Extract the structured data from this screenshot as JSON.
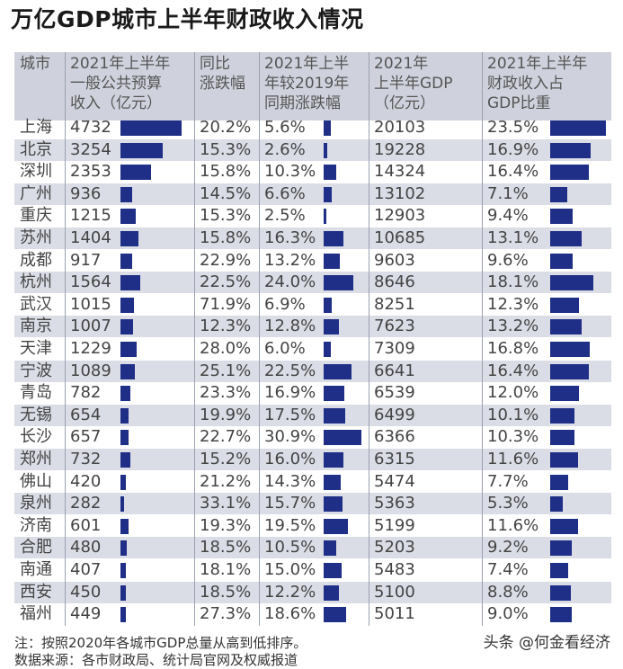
{
  "title": "万亿GDP城市上半年财政收入情况",
  "headers": [
    [
      "城市"
    ],
    [
      "2021年上半年",
      "一般公共预算",
      "收入（亿元）"
    ],
    [
      "同比",
      "涨跌幅"
    ],
    [
      "2021年上半",
      "年较2019年",
      "同期涨跌幅"
    ],
    [
      "2021年",
      "上半年GDP",
      "（亿元）"
    ],
    [
      "2021年上半年",
      "财政收入占",
      "GDP比重"
    ]
  ],
  "chart_data": {
    "type": "table",
    "title": "万亿GDP城市上半年财政收入情况",
    "columns": [
      "城市",
      "2021年上半年一般公共预算收入（亿元）",
      "同比涨跌幅",
      "2021年上半年较2019年同期涨跌幅",
      "2021年上半年GDP（亿元）",
      "2021年上半年财政收入占GDP比重"
    ],
    "rows": [
      {
        "city": "上海",
        "revenue": "4732",
        "yoy": "20.2%",
        "vs2019": "5.6%",
        "gdp": "20103",
        "ratio": "23.5%"
      },
      {
        "city": "北京",
        "revenue": "3254",
        "yoy": "15.3%",
        "vs2019": "2.6%",
        "gdp": "19228",
        "ratio": "16.9%"
      },
      {
        "city": "深圳",
        "revenue": "2353",
        "yoy": "15.8%",
        "vs2019": "10.3%",
        "gdp": "14324",
        "ratio": "16.4%"
      },
      {
        "city": "广州",
        "revenue": "936",
        "yoy": "14.5%",
        "vs2019": "6.6%",
        "gdp": "13102",
        "ratio": "7.1%"
      },
      {
        "city": "重庆",
        "revenue": "1215",
        "yoy": "15.3%",
        "vs2019": "2.5%",
        "gdp": "12903",
        "ratio": "9.4%"
      },
      {
        "city": "苏州",
        "revenue": "1404",
        "yoy": "15.8%",
        "vs2019": "16.3%",
        "gdp": "10685",
        "ratio": "13.1%"
      },
      {
        "city": "成都",
        "revenue": "917",
        "yoy": "22.9%",
        "vs2019": "13.2%",
        "gdp": "9603",
        "ratio": "9.6%"
      },
      {
        "city": "杭州",
        "revenue": "1564",
        "yoy": "22.5%",
        "vs2019": "24.0%",
        "gdp": "8646",
        "ratio": "18.1%"
      },
      {
        "city": "武汉",
        "revenue": "1015",
        "yoy": "71.9%",
        "vs2019": "6.9%",
        "gdp": "8251",
        "ratio": "12.3%"
      },
      {
        "city": "南京",
        "revenue": "1007",
        "yoy": "12.3%",
        "vs2019": "12.8%",
        "gdp": "7623",
        "ratio": "13.2%"
      },
      {
        "city": "天津",
        "revenue": "1229",
        "yoy": "28.0%",
        "vs2019": "6.0%",
        "gdp": "7309",
        "ratio": "16.8%"
      },
      {
        "city": "宁波",
        "revenue": "1089",
        "yoy": "25.1%",
        "vs2019": "22.5%",
        "gdp": "6641",
        "ratio": "16.4%"
      },
      {
        "city": "青岛",
        "revenue": "782",
        "yoy": "23.3%",
        "vs2019": "16.9%",
        "gdp": "6539",
        "ratio": "12.0%"
      },
      {
        "city": "无锡",
        "revenue": "654",
        "yoy": "19.9%",
        "vs2019": "17.5%",
        "gdp": "6499",
        "ratio": "10.1%"
      },
      {
        "city": "长沙",
        "revenue": "657",
        "yoy": "22.7%",
        "vs2019": "30.9%",
        "gdp": "6366",
        "ratio": "10.3%"
      },
      {
        "city": "郑州",
        "revenue": "732",
        "yoy": "15.2%",
        "vs2019": "16.0%",
        "gdp": "6315",
        "ratio": "11.6%"
      },
      {
        "city": "佛山",
        "revenue": "420",
        "yoy": "21.2%",
        "vs2019": "14.3%",
        "gdp": "5474",
        "ratio": "7.7%"
      },
      {
        "city": "泉州",
        "revenue": "282",
        "yoy": "33.1%",
        "vs2019": "15.7%",
        "gdp": "5363",
        "ratio": "5.3%"
      },
      {
        "city": "济南",
        "revenue": "601",
        "yoy": "19.3%",
        "vs2019": "19.5%",
        "gdp": "5199",
        "ratio": "11.6%"
      },
      {
        "city": "合肥",
        "revenue": "480",
        "yoy": "18.5%",
        "vs2019": "10.5%",
        "gdp": "5203",
        "ratio": "9.2%"
      },
      {
        "city": "南通",
        "revenue": "407",
        "yoy": "18.1%",
        "vs2019": "15.0%",
        "gdp": "5483",
        "ratio": "7.4%"
      },
      {
        "city": "西安",
        "revenue": "450",
        "yoy": "18.5%",
        "vs2019": "12.2%",
        "gdp": "5100",
        "ratio": "8.8%"
      },
      {
        "city": "福州",
        "revenue": "449",
        "yoy": "27.3%",
        "vs2019": "18.6%",
        "gdp": "5011",
        "ratio": "9.0%"
      }
    ],
    "bar_columns": [
      "revenue",
      "vs2019",
      "ratio"
    ],
    "bar_color": "#1f2e86"
  },
  "footer": {
    "note1": "注：按照2020年各城市GDP总量从高到低排序。",
    "note2": "数据来源：各市财政局、统计局官网及权威报道"
  },
  "watermark": "头条 @何金看经济"
}
